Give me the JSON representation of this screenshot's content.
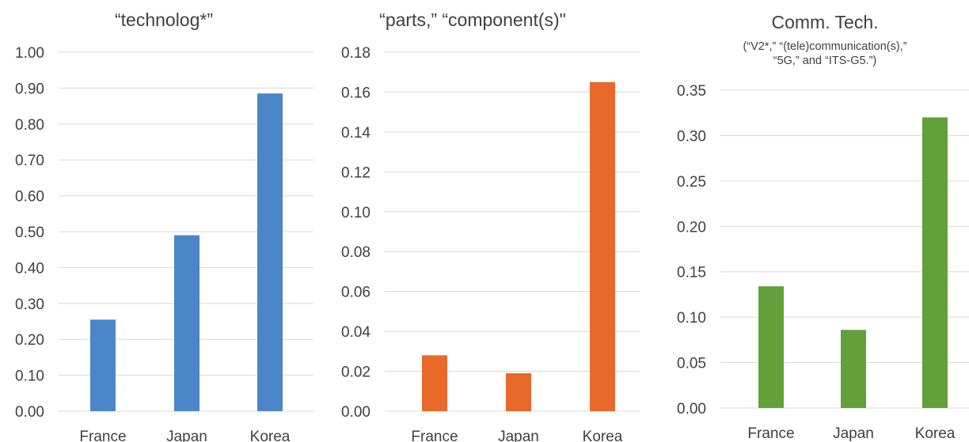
{
  "chart_data": [
    {
      "type": "bar",
      "title": "“technolog*”",
      "subtitle": "",
      "categories": [
        "France",
        "Japan",
        "Korea"
      ],
      "values": [
        0.255,
        0.49,
        0.885
      ],
      "color": "#4a86c8",
      "ylim": [
        0,
        1.0
      ],
      "yticks": [
        "0.00",
        "0.10",
        "0.20",
        "0.30",
        "0.40",
        "0.50",
        "0.60",
        "0.70",
        "0.80",
        "0.90",
        "1.00"
      ],
      "grid": true
    },
    {
      "type": "bar",
      "title": "“parts,” “component(s)\"",
      "subtitle": "",
      "categories": [
        "France",
        "Japan",
        "Korea"
      ],
      "values": [
        0.028,
        0.019,
        0.165
      ],
      "color": "#e8692a",
      "ylim": [
        0,
        0.18
      ],
      "yticks": [
        "0.00",
        "0.02",
        "0.04",
        "0.06",
        "0.08",
        "0.10",
        "0.12",
        "0.14",
        "0.16",
        "0.18"
      ],
      "grid": true
    },
    {
      "type": "bar",
      "title": "Comm. Tech.",
      "subtitle": [
        "(“V2*,” “(tele)communication(s),”",
        "“5G,” and “ITS-G5.”)"
      ],
      "categories": [
        "France",
        "Japan",
        "Korea"
      ],
      "values": [
        0.134,
        0.086,
        0.32
      ],
      "color": "#62a03a",
      "ylim": [
        0,
        0.35
      ],
      "yticks": [
        "0.00",
        "0.05",
        "0.10",
        "0.15",
        "0.20",
        "0.25",
        "0.30",
        "0.35"
      ],
      "grid": true
    }
  ]
}
